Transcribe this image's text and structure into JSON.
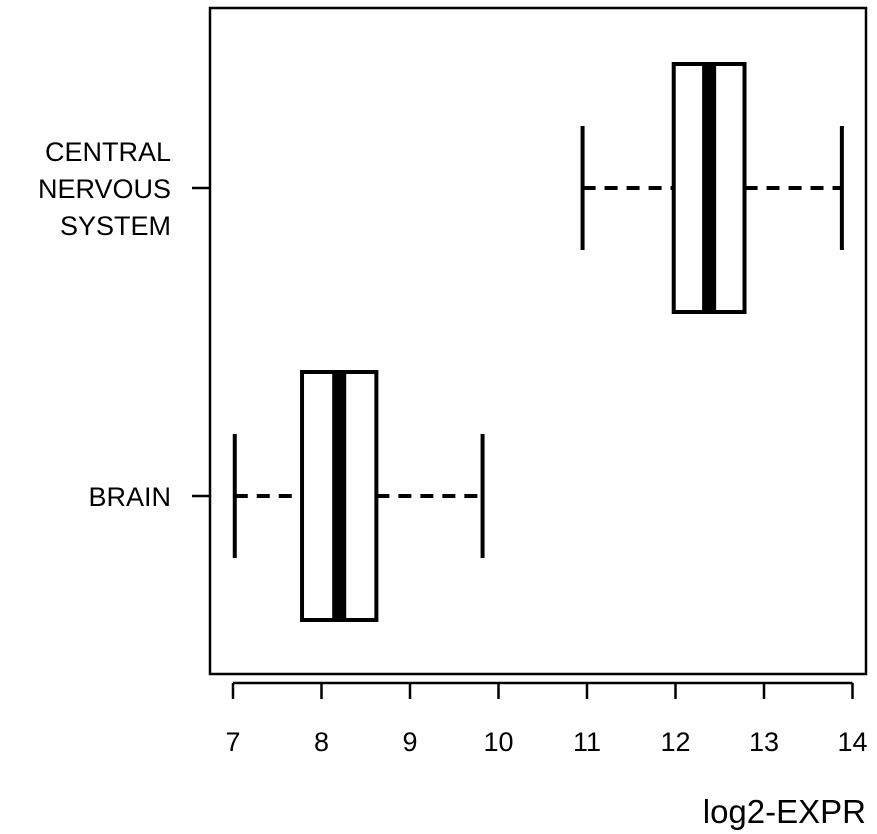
{
  "chart_data": {
    "type": "boxplot",
    "orientation": "horizontal",
    "xlabel": "log2-EXPR",
    "xlim": [
      6.8,
      14.1
    ],
    "xticks": [
      7,
      8,
      9,
      10,
      11,
      12,
      13,
      14
    ],
    "grid": false,
    "legend": "none",
    "colors": {
      "stroke": "#000000",
      "box_fill": "#ffffff",
      "median": "#000000"
    },
    "categories": [
      {
        "label_lines": [
          "CENTRAL",
          "NERVOUS",
          "SYSTEM"
        ],
        "whisker_low": 10.95,
        "q1": 11.98,
        "median": 12.38,
        "q3": 12.78,
        "whisker_high": 13.88
      },
      {
        "label_lines": [
          "BRAIN"
        ],
        "whisker_low": 7.02,
        "q1": 7.78,
        "median": 8.2,
        "q3": 8.62,
        "whisker_high": 9.82
      }
    ]
  }
}
